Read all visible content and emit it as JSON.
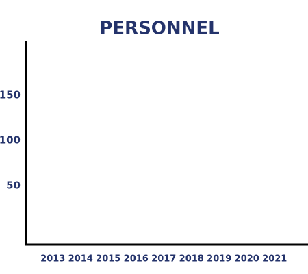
{
  "chart_data": {
    "type": "bar",
    "title": "PERSONNEL",
    "categories": [
      "2013",
      "2014",
      "2015",
      "2016",
      "2017",
      "2018",
      "2019",
      "2020",
      "2021"
    ],
    "ylim": [
      -15,
      210
    ],
    "yticks": [
      50,
      100,
      150
    ]
  }
}
